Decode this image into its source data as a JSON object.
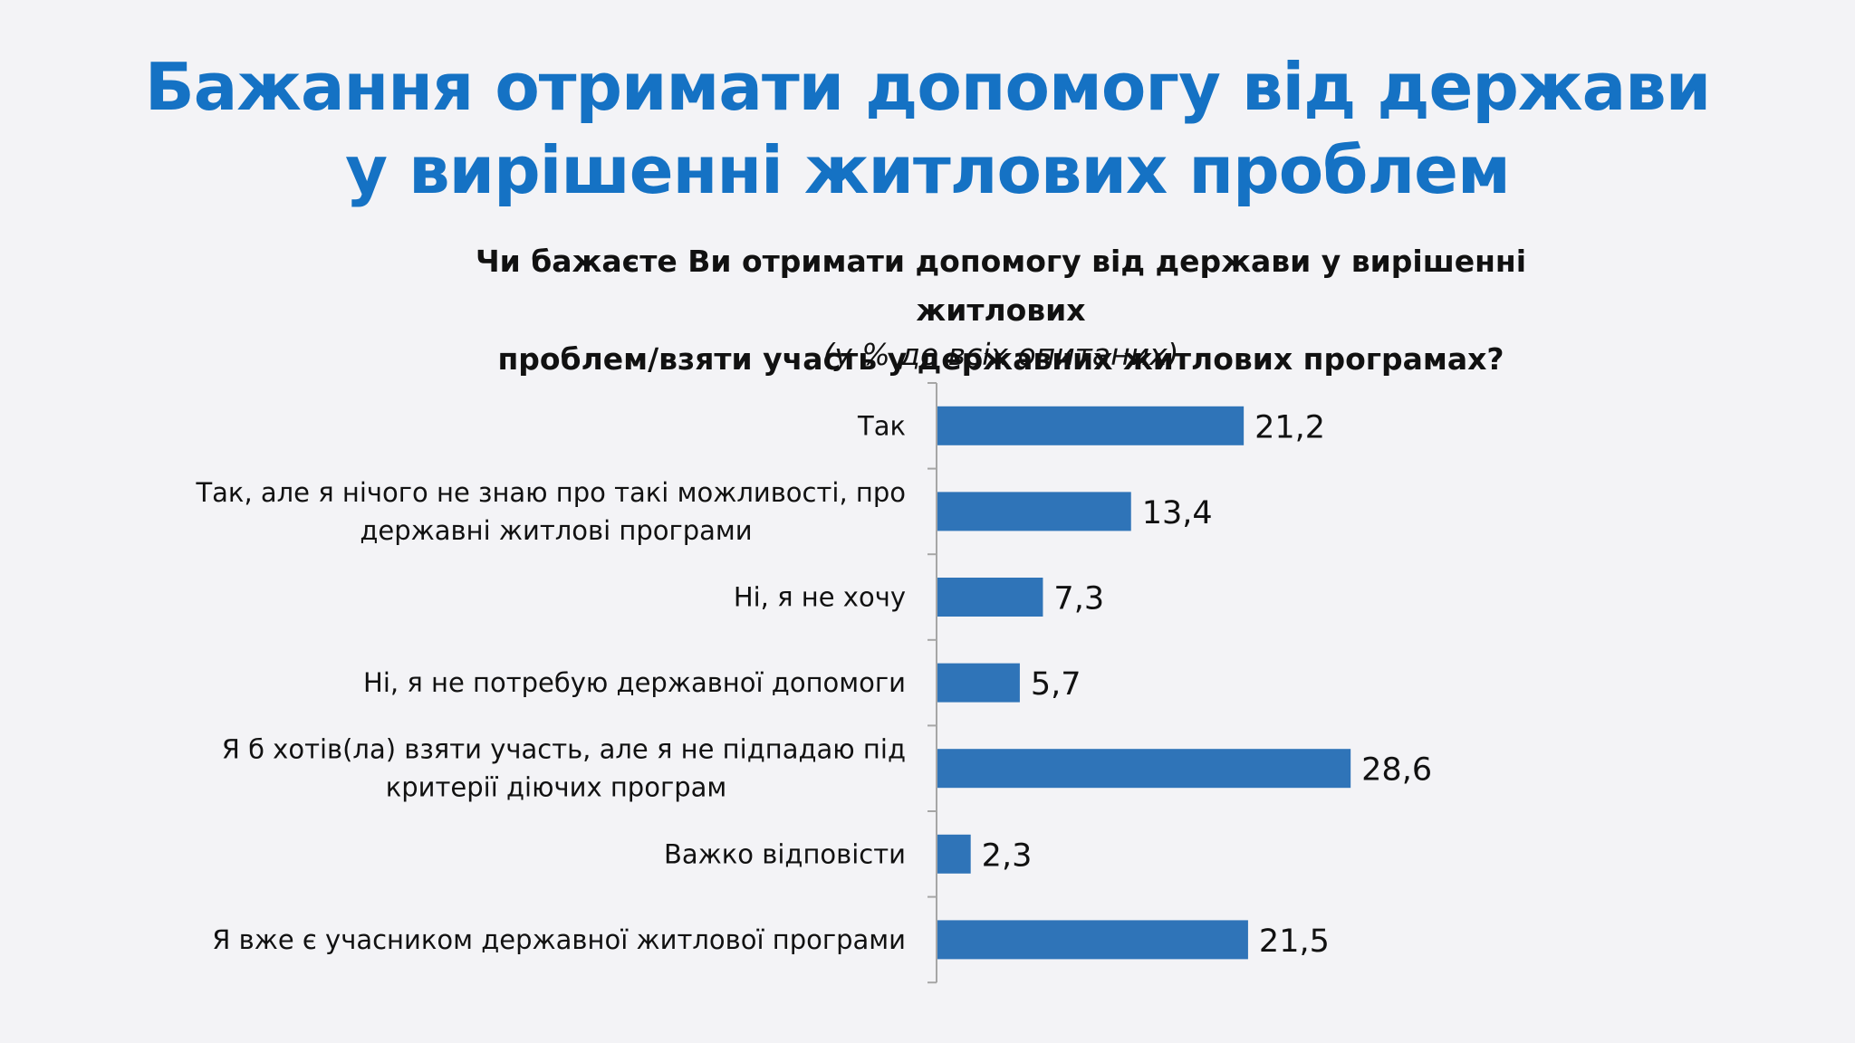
{
  "slide": {
    "title_line1": "Бажання отримати допомогу від держави",
    "title_line2": "у вирішенні житлових проблем"
  },
  "question": {
    "line1": "Чи бажаєте Ви отримати допомогу від держави у вирішенні житлових",
    "line2": "проблем/взяти участь у державних житлових програмах?",
    "note": "(у % до всіх опитаних)"
  },
  "chart_data": {
    "type": "bar",
    "orientation": "horizontal",
    "categories": [
      [
        "Так"
      ],
      [
        "Так, але я нічого не знаю про такі можливості, про",
        "державні житлові програми"
      ],
      [
        "Ні, я не хочу"
      ],
      [
        "Ні, я не потребую державної допомоги"
      ],
      [
        "Я б хотів(ла) взяти участь, але я не підпадаю під",
        "критерії діючих програм"
      ],
      [
        "Важко відповісти"
      ],
      [
        "Я вже є учасником державної житлової програми"
      ]
    ],
    "values": [
      21.2,
      13.4,
      7.3,
      5.7,
      28.6,
      2.3,
      21.5
    ],
    "value_labels": [
      "21,2",
      "13,4",
      "7,3",
      "5,7",
      "28,6",
      "2,3",
      "21,5"
    ],
    "xlim": [
      0,
      30
    ],
    "bar_color": "#2f74b8",
    "axis_color": "#a6a6a6",
    "grid": false,
    "legend": "none"
  }
}
